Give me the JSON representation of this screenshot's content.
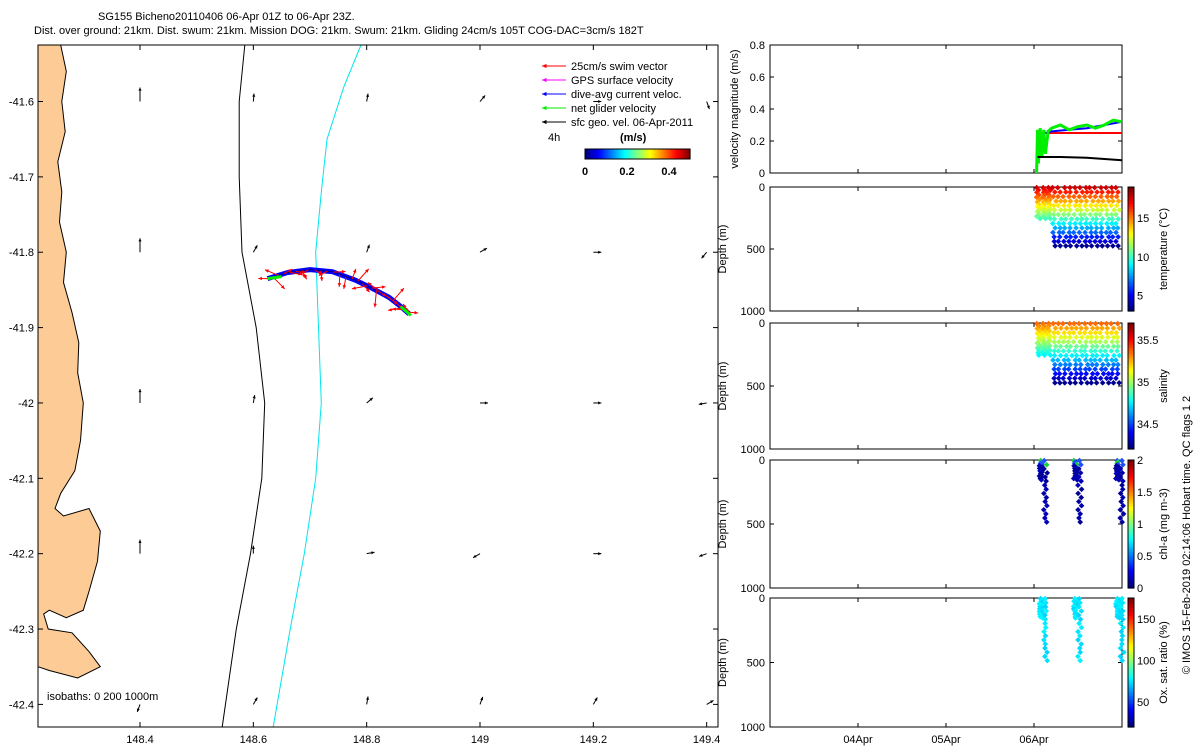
{
  "header": {
    "line1": "SG155 Bicheno20110406 06-Apr 01Z to 06-Apr 23Z.",
    "line2": "Dist. over ground: 21km. Dist. swum: 21km. Mission DOG: 21km. Swum: 21km. Gliding 24cm/s 105T COG-DAC=3cm/s 182T"
  },
  "colors": {
    "land": "#FDCB96",
    "swim_vector": "#ff0000",
    "gps_velocity": "#ff00ff",
    "dac": "#0000ff",
    "net_velocity": "#00ee00",
    "geo_velocity": "#000000",
    "isobath_200": "#000000",
    "isobath_1000": "#00e5ee"
  },
  "chart_data": [
    {
      "type": "scatter",
      "name": "map",
      "xlim": [
        148.22,
        149.42
      ],
      "ylim": [
        -42.43,
        -41.525
      ],
      "x_ticks": [
        "148.4",
        "148.6",
        "148.8",
        "149",
        "149.2",
        "149.4"
      ],
      "y_ticks": [
        "-41.6",
        "-41.7",
        "-41.8",
        "-41.9",
        "-42",
        "-42.1",
        "-42.2",
        "-42.3",
        "-42.4"
      ],
      "legend": {
        "placement": "top-right",
        "entries": [
          "25cm/s swim vector",
          "GPS surface velocity",
          "dive-avg current veloc.",
          "net glider velocity",
          "sfc geo. vel. 06-Apr-2011"
        ],
        "time_label": "4h",
        "colorbar_label": "(m/s)",
        "colorbar_ticks": [
          "0",
          "0.2",
          "0.4"
        ],
        "colorbar_range": [
          0,
          0.5
        ]
      },
      "isobath_label": "isobaths: 0   200  1000m",
      "glider_track": [
        [
          148.625,
          -41.835
        ],
        [
          148.66,
          -41.827
        ],
        [
          148.7,
          -41.823
        ],
        [
          148.74,
          -41.826
        ],
        [
          148.78,
          -41.837
        ],
        [
          148.81,
          -41.848
        ],
        [
          148.84,
          -41.86
        ],
        [
          148.86,
          -41.872
        ],
        [
          148.875,
          -41.882
        ]
      ],
      "isobath_200": [
        [
          148.585,
          -41.525
        ],
        [
          148.575,
          -41.6
        ],
        [
          148.575,
          -41.7
        ],
        [
          148.58,
          -41.8
        ],
        [
          148.605,
          -41.9
        ],
        [
          148.62,
          -42.0
        ],
        [
          148.615,
          -42.1
        ],
        [
          148.595,
          -42.2
        ],
        [
          148.57,
          -42.3
        ],
        [
          148.545,
          -42.43
        ]
      ],
      "isobath_1000": [
        [
          148.79,
          -41.525
        ],
        [
          148.76,
          -41.58
        ],
        [
          148.73,
          -41.65
        ],
        [
          148.72,
          -41.72
        ],
        [
          148.71,
          -41.8
        ],
        [
          148.715,
          -41.9
        ],
        [
          148.72,
          -42.0
        ],
        [
          148.71,
          -42.1
        ],
        [
          148.69,
          -42.2
        ],
        [
          148.665,
          -42.3
        ],
        [
          148.635,
          -42.43
        ]
      ],
      "geo_vel_grid_lon": [
        148.4,
        148.6,
        148.8,
        149.0,
        149.2,
        149.4
      ],
      "geo_vel_grid_lat": [
        -41.6,
        -41.8,
        -42.0,
        -42.2,
        -42.4
      ],
      "geo_vel_dirs_deg": [
        [
          0,
          5,
          10,
          40,
          90,
          160
        ],
        [
          0,
          30,
          20,
          60,
          90,
          220
        ],
        [
          0,
          10,
          50,
          90,
          90,
          260
        ],
        [
          0,
          0,
          80,
          240,
          90,
          250
        ],
        [
          200,
          30,
          10,
          20,
          30,
          60
        ]
      ]
    },
    {
      "type": "line",
      "name": "velocity",
      "ylabel": "velocity magnitude (m/s)",
      "ylim": [
        0,
        0.8
      ],
      "y_ticks": [
        "0",
        "0.2",
        "0.4",
        "0.6",
        "0.8"
      ],
      "xlim": [
        3,
        7
      ],
      "series": [
        {
          "name": "25cm/s swim vector",
          "color": "#ff0000",
          "x": [
            6.05,
            7.0
          ],
          "y": [
            0.25,
            0.25
          ]
        },
        {
          "name": "dive-avg current veloc.",
          "color": "#0000ff",
          "x": [
            6.05,
            6.2,
            6.4,
            6.6,
            6.8,
            7.0
          ],
          "y": [
            0.24,
            0.26,
            0.27,
            0.28,
            0.3,
            0.32
          ]
        },
        {
          "name": "net glider velocity",
          "color": "#00ee00",
          "x": [
            6.03,
            6.04,
            6.05,
            6.07,
            6.09,
            6.11,
            6.13,
            6.16,
            6.2,
            6.3,
            6.4,
            6.5,
            6.6,
            6.7,
            6.8,
            6.9,
            7.0
          ],
          "y": [
            0.0,
            0.27,
            0.06,
            0.28,
            0.1,
            0.27,
            0.12,
            0.26,
            0.28,
            0.3,
            0.27,
            0.29,
            0.3,
            0.28,
            0.3,
            0.33,
            0.32
          ]
        },
        {
          "name": "sfc geo. vel. 06-Apr-2011",
          "color": "#000000",
          "x": [
            6.04,
            6.3,
            6.6,
            7.0
          ],
          "y": [
            0.1,
            0.1,
            0.095,
            0.08
          ]
        }
      ]
    },
    {
      "type": "scatter",
      "name": "temperature",
      "ylabel": "Depth (m)",
      "ylim": [
        1000,
        0
      ],
      "y_ticks": [
        "0",
        "500",
        "1000"
      ],
      "colorbar_label": "temperature (°C)",
      "colorbar_ticks": [
        "5",
        "10",
        "15"
      ],
      "colorbar_range": [
        3,
        19
      ]
    },
    {
      "type": "scatter",
      "name": "salinity",
      "ylabel": "Depth (m)",
      "ylim": [
        1000,
        0
      ],
      "y_ticks": [
        "0",
        "500",
        "1000"
      ],
      "colorbar_label": "salinity",
      "colorbar_ticks": [
        "34.5",
        "35",
        "35.5"
      ],
      "colorbar_range": [
        34.2,
        35.7
      ]
    },
    {
      "type": "scatter",
      "name": "chla",
      "ylabel": "Depth (m)",
      "ylim": [
        1000,
        0
      ],
      "y_ticks": [
        "0",
        "500",
        "1000"
      ],
      "colorbar_label": "chl-a (mg m-3)",
      "colorbar_ticks": [
        "0",
        "0.5",
        "1",
        "1.5",
        "2"
      ],
      "colorbar_range": [
        0,
        2
      ]
    },
    {
      "type": "scatter",
      "name": "oxygen",
      "ylabel": "Depth (m)",
      "ylim": [
        1000,
        0
      ],
      "y_ticks": [
        "0",
        "500",
        "1000"
      ],
      "colorbar_label": "Ox. sat. ratio (%)",
      "colorbar_ticks": [
        "50",
        "100",
        "150"
      ],
      "colorbar_range": [
        20,
        175
      ],
      "x_ticks": [
        "04Apr",
        "05Apr",
        "06Apr"
      ],
      "x_tick_values": [
        4,
        5,
        6
      ]
    }
  ],
  "footer": {
    "stamp": "© IMOS 15-Feb-2019 02:14:06 Hobart time. QC flags 1  2"
  }
}
